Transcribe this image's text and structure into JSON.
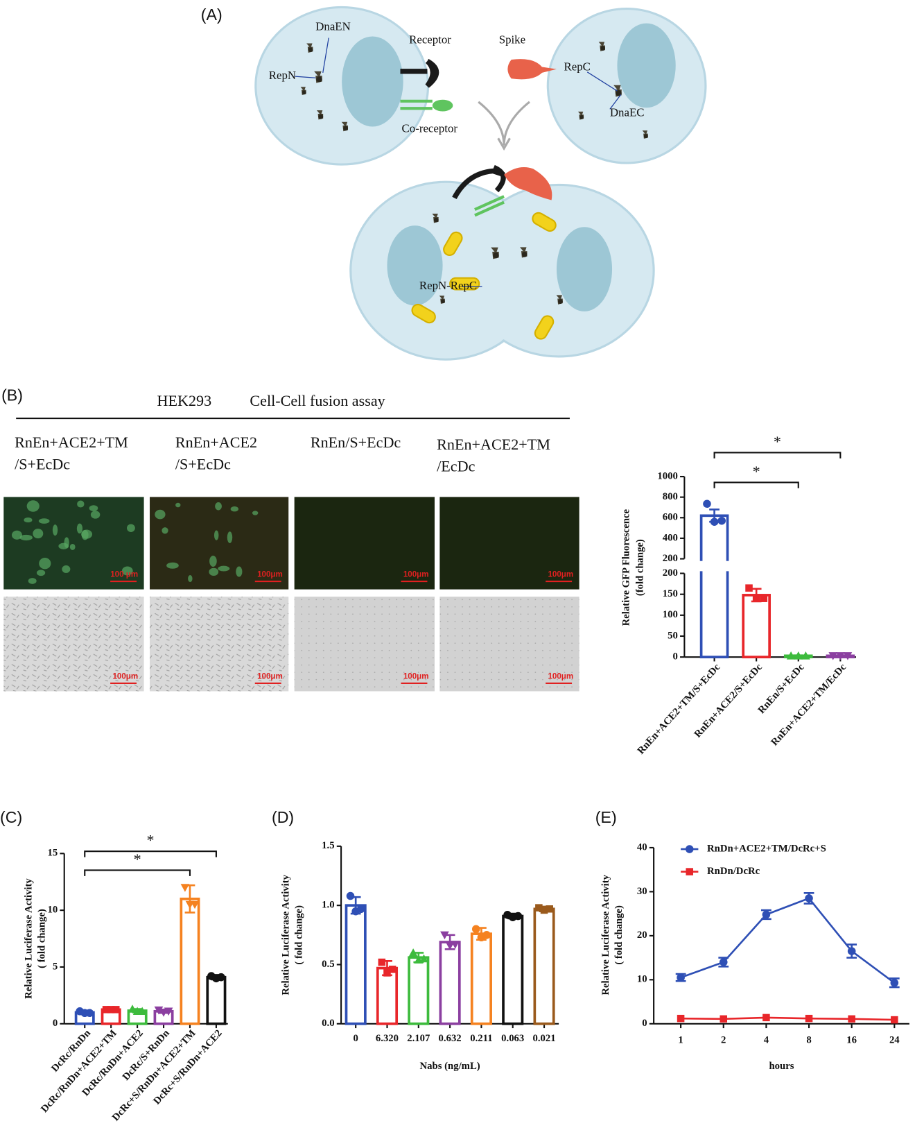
{
  "panel_a": {
    "label": "(A)",
    "texts": {
      "dna_en": "DnaEN",
      "rep_n": "RepN",
      "receptor": "Receptor",
      "spike": "Spike",
      "rep_c": "RepC",
      "dna_ec": "DnaEC",
      "co_receptor": "Co-receptor",
      "rep_n_rep_c": "RepN-RepC"
    }
  },
  "panel_b": {
    "label": "(B)",
    "cell_line": "HEK293",
    "assay": "Cell-Cell fusion assay",
    "conditions": [
      [
        "RnEn+ACE2+TM",
        "/S+EcDc"
      ],
      [
        "RnEn+ACE2",
        "/S+EcDc"
      ],
      [
        "RnEn/S+EcDc"
      ],
      [
        "RnEn+ACE2+TM",
        "/EcDc"
      ]
    ],
    "scale_bars": [
      [
        "100 μm",
        "100μm"
      ],
      [
        "100μm",
        "100μm"
      ],
      [
        "100μm",
        "100μm"
      ],
      [
        "100μm",
        "100μm"
      ]
    ]
  },
  "chart_data": [
    {
      "type": "bar",
      "ylabel": [
        "Relative GFP Fluorescence",
        "(fold change)"
      ],
      "categories": [
        "RnEn+ACE2+TM/S+EcDc",
        "RnEn+ACE2/S+EcDc",
        "RnEn/S+EcDc",
        "RnEn+ACE2+TM/EcDc"
      ],
      "values": [
        620,
        148,
        3,
        3
      ],
      "errors": [
        60,
        15,
        1,
        1
      ],
      "points": [
        [
          735,
          560,
          570
        ],
        [
          165,
          140,
          140
        ],
        [
          3,
          3,
          3
        ],
        [
          3,
          3,
          3
        ]
      ],
      "colors": [
        "#2e4fb5",
        "#e8262a",
        "#3dbb3d",
        "#8b3fa0"
      ],
      "markers": [
        "circle",
        "square",
        "triangle",
        "triangle-down"
      ],
      "segments": [
        {
          "ylim": [
            0,
            200
          ],
          "yticks": [
            0,
            50,
            100,
            150,
            200
          ]
        },
        {
          "ylim": [
            200,
            1000
          ],
          "yticks": [
            200,
            400,
            600,
            800,
            1000
          ]
        }
      ],
      "significance": [
        {
          "from": 0,
          "to": 3,
          "label": "*"
        },
        {
          "from": 0,
          "to": 2,
          "label": "*"
        }
      ]
    },
    {
      "type": "bar",
      "panel_label": "(C)",
      "ylabel": [
        "Relative Luciferase Activity",
        "( fold change)"
      ],
      "categories": [
        "DcRc/RnDn",
        "DcRc/RnDn+ACE2+TM",
        "DcRc/RnDn+ACE2",
        "DcRc/S+RnDn",
        "DcRc+S/RnDn+ACE2+TM",
        "DcRc+S/RnDn+ACE2"
      ],
      "values": [
        1.0,
        1.25,
        1.15,
        1.1,
        11.0,
        4.1
      ],
      "errors": [
        0.15,
        0.08,
        0.15,
        0.15,
        1.2,
        0.2
      ],
      "points": [
        [
          1.1,
          0.95,
          0.95
        ],
        [
          1.25,
          1.25,
          1.25
        ],
        [
          1.3,
          1.1,
          1.1
        ],
        [
          1.2,
          1.0,
          1.1
        ],
        [
          12.0,
          10.5,
          10.5
        ],
        [
          4.2,
          4.0,
          4.1
        ]
      ],
      "colors": [
        "#2e4fb5",
        "#e8262a",
        "#3dbb3d",
        "#8b3fa0",
        "#f58220",
        "#111111"
      ],
      "markers": [
        "circle",
        "square",
        "triangle",
        "triangle-down",
        "triangle-down",
        "circle"
      ],
      "ylim": [
        0,
        15
      ],
      "yticks": [
        0,
        5,
        10,
        15
      ],
      "significance": [
        {
          "from": 0,
          "to": 5,
          "label": "*"
        },
        {
          "from": 0,
          "to": 4,
          "label": "*"
        }
      ]
    },
    {
      "type": "bar",
      "panel_label": "(D)",
      "ylabel": [
        "Relative Luciferase Activity",
        "( fold change)"
      ],
      "xlabel": "Nabs (ng/mL)",
      "categories": [
        "0",
        "6.320",
        "2.107",
        "0.632",
        "0.211",
        "0.063",
        "0.021"
      ],
      "values": [
        1.0,
        0.47,
        0.56,
        0.69,
        0.76,
        0.91,
        0.97
      ],
      "errors": [
        0.07,
        0.06,
        0.04,
        0.06,
        0.05,
        0.02,
        0.02
      ],
      "points": [
        [
          1.08,
          0.95,
          0.97
        ],
        [
          0.52,
          0.43,
          0.46
        ],
        [
          0.6,
          0.54,
          0.55
        ],
        [
          0.75,
          0.66,
          0.67
        ],
        [
          0.8,
          0.73,
          0.75
        ],
        [
          0.92,
          0.9,
          0.91
        ],
        [
          0.98,
          0.96,
          0.97
        ]
      ],
      "colors": [
        "#2e4fb5",
        "#e8262a",
        "#3dbb3d",
        "#8b3fa0",
        "#f58220",
        "#111111",
        "#9a5a1c"
      ],
      "markers": [
        "circle",
        "square",
        "triangle",
        "triangle-down",
        "circle",
        "circle",
        "square"
      ],
      "ylim": [
        0,
        1.5
      ],
      "yticks": [
        {
          "value": 0,
          "label": "0.0"
        },
        0.5,
        {
          "value": 1,
          "label": "1.0"
        },
        1.5
      ]
    },
    {
      "type": "line",
      "panel_label": "(E)",
      "ylabel": [
        "Relative Luciferase Activity",
        "( fold change)"
      ],
      "xlabel": "hours",
      "categories": [
        "1",
        "2",
        "4",
        "8",
        "16",
        "24"
      ],
      "series": [
        {
          "name": "RnDn+ACE2+TM/DcRc+S",
          "color": "#2e4fb5",
          "marker": "circle",
          "values": [
            10.5,
            14,
            24.8,
            28.5,
            16.5,
            9.3
          ],
          "errors": [
            0.8,
            1,
            1,
            1.2,
            1.5,
            1
          ]
        },
        {
          "name": "RnDn/DcRc",
          "color": "#e8262a",
          "marker": "square",
          "values": [
            1.2,
            1.1,
            1.4,
            1.2,
            1.1,
            0.9
          ]
        }
      ],
      "ylim": [
        0,
        40
      ],
      "yticks": [
        0,
        10,
        20,
        30,
        40
      ],
      "legend": "top-left"
    }
  ]
}
